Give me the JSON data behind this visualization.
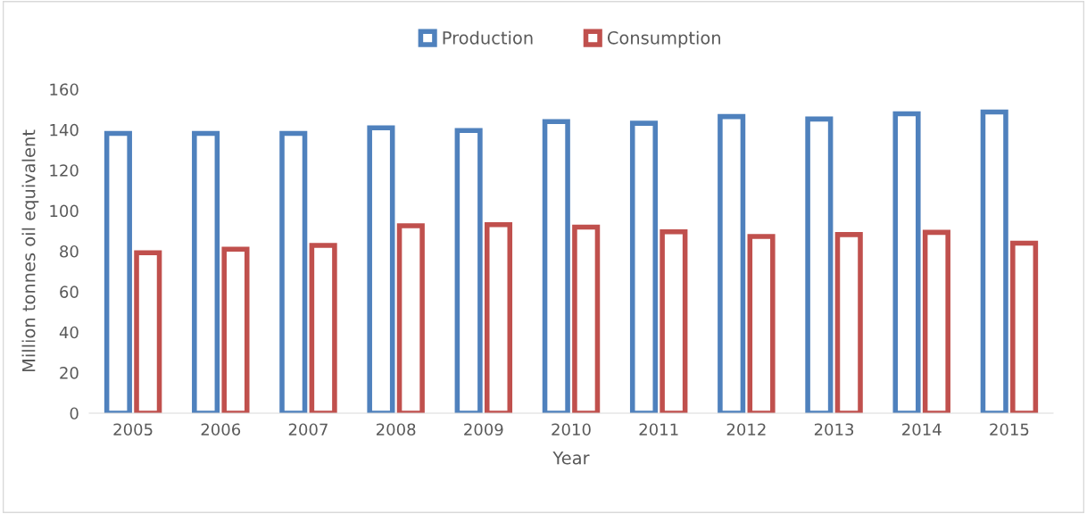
{
  "chart_data": {
    "type": "bar",
    "xlabel": "Year",
    "ylabel": "Million tonnes oil equivalent",
    "categories": [
      "2005",
      "2006",
      "2007",
      "2008",
      "2009",
      "2010",
      "2011",
      "2012",
      "2013",
      "2014",
      "2015"
    ],
    "series": [
      {
        "name": "Production",
        "color": "#4f81bd",
        "values": [
          138.2,
          138.2,
          138.2,
          140.9,
          139.6,
          144,
          143.2,
          146.5,
          145.3,
          147.9,
          148.8
        ]
      },
      {
        "name": "Consumption",
        "color": "#c0504d",
        "values": [
          79.2,
          81,
          82.9,
          92.6,
          93.1,
          91.9,
          89.6,
          87.3,
          88.2,
          89.3,
          84
        ]
      }
    ],
    "ylim": [
      0,
      160
    ],
    "yticks": [
      0,
      20,
      40,
      60,
      80,
      100,
      120,
      140,
      160
    ],
    "grid": false,
    "legend": "top"
  }
}
